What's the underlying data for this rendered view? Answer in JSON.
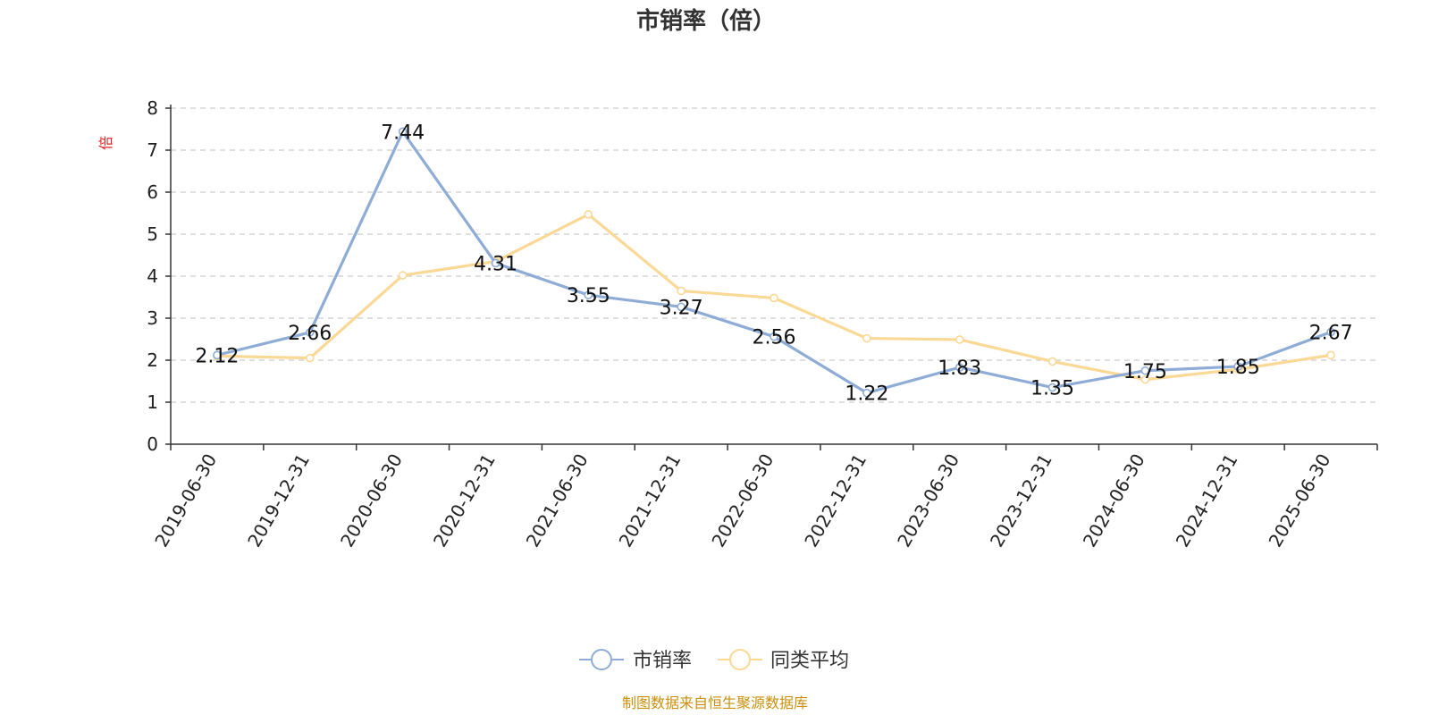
{
  "chart_data": {
    "type": "line",
    "title": "市销率（倍）",
    "ylabel": "倍",
    "xlabel": "",
    "categories": [
      "2019-06-30",
      "2019-12-31",
      "2020-06-30",
      "2020-12-31",
      "2021-06-30",
      "2021-12-31",
      "2022-06-30",
      "2022-12-31",
      "2023-06-30",
      "2023-12-31",
      "2024-06-30",
      "2024-12-31",
      "2025-06-30"
    ],
    "y_ticks": [
      "0",
      "1",
      "2",
      "3",
      "4",
      "5",
      "6",
      "7",
      "8"
    ],
    "ylim": [
      0,
      8
    ],
    "grid": true,
    "grid_style": "dashed",
    "legend_position": "bottom-center",
    "series": [
      {
        "name": "市销率",
        "color": "#8eacd6",
        "values": [
          2.12,
          2.66,
          7.44,
          4.31,
          3.55,
          3.27,
          2.56,
          1.22,
          1.83,
          1.35,
          1.75,
          1.85,
          2.67
        ],
        "labels": [
          "2.12",
          "2.66",
          "7.44",
          "4.31",
          "3.55",
          "3.27",
          "2.56",
          "1.22",
          "1.83",
          "1.35",
          "1.75",
          "1.85",
          "2.67"
        ]
      },
      {
        "name": "同类平均",
        "color": "#fad895",
        "values": [
          2.1,
          2.05,
          4.02,
          4.35,
          5.47,
          3.65,
          3.48,
          2.52,
          2.49,
          1.97,
          1.54,
          1.78,
          2.12
        ]
      }
    ]
  },
  "source_note": "制图数据来自恒生聚源数据库",
  "colors": {
    "axis": "#333333",
    "grid": "#cccccc",
    "unit": "#e02020",
    "source": "#c8900e"
  }
}
